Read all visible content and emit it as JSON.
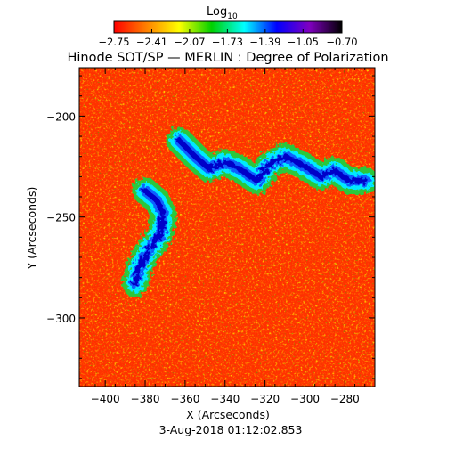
{
  "chart_data": {
    "type": "heatmap",
    "title": "Hinode SOT/SP — MERLIN : Degree of Polarization",
    "xlabel": "X (Arcseconds)",
    "ylabel": "Y (Arcseconds)",
    "footer": "3-Aug-2018 01:12:02.853",
    "colorbar": {
      "label_main": "Log",
      "label_sub": "10",
      "min": -2.75,
      "max": -0.7,
      "tick_values": [
        -2.75,
        -2.41,
        -2.07,
        -1.73,
        -1.39,
        -1.05,
        -0.7
      ],
      "tick_labels": [
        "−2.75",
        "−2.41",
        "−2.07",
        "−1.73",
        "−1.39",
        "−1.05",
        "−0.70"
      ]
    },
    "xlim": [
      -413,
      -265
    ],
    "ylim": [
      -334,
      -176
    ],
    "x_ticks": [
      -400,
      -380,
      -360,
      -340,
      -320,
      -300,
      -280
    ],
    "x_tick_labels": [
      "−400",
      "−380",
      "−360",
      "−340",
      "−320",
      "−300",
      "−280"
    ],
    "y_ticks": [
      -200,
      -250,
      -300
    ],
    "y_tick_labels": [
      "−200",
      "−250",
      "−300"
    ],
    "colormap": "rainbow",
    "colormap_stops": [
      "#ff0000",
      "#ff8000",
      "#ffff00",
      "#00d000",
      "#00ffff",
      "#0000ff",
      "#8000c0",
      "#000000"
    ],
    "structures": [
      {
        "x": [
          -363,
          -355,
          -348,
          -340,
          -333,
          -324,
          -318,
          -310,
          -300,
          -292,
          -285,
          -278,
          -270
        ],
        "y": [
          -212,
          -220,
          -226,
          -223,
          -226,
          -232,
          -224,
          -220,
          -225,
          -230,
          -227,
          -232,
          -232
        ]
      },
      {
        "x": [
          -380,
          -374,
          -371,
          -372,
          -378,
          -383,
          -385
        ],
        "y": [
          -237,
          -242,
          -248,
          -258,
          -266,
          -275,
          -283
        ]
      }
    ]
  }
}
